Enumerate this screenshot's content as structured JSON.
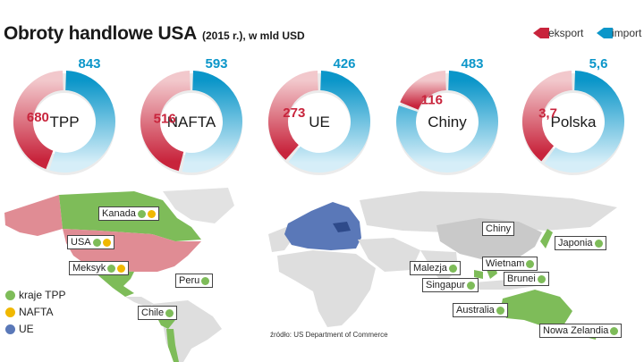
{
  "header": {
    "title": "Obroty handlowe USA",
    "subtitle": "(2015 r.), w mld USD"
  },
  "legend": {
    "export_label": "eksport",
    "import_label": "import",
    "export_color": "#c8243c",
    "import_color": "#0b96c9"
  },
  "chart_data": {
    "type": "donut",
    "title": "Obroty handlowe USA (2015 r.), w mld USD",
    "unit": "mld USD",
    "series_names": [
      "eksport",
      "import"
    ],
    "items": [
      {
        "name": "TPP",
        "export": 680,
        "import": 843,
        "export_label": "680",
        "import_label": "843"
      },
      {
        "name": "NAFTA",
        "export": 516,
        "import": 593,
        "export_label": "516",
        "import_label": "593"
      },
      {
        "name": "UE",
        "export": 273,
        "import": 426,
        "export_label": "273",
        "import_label": "426"
      },
      {
        "name": "Chiny",
        "export": 116,
        "import": 483,
        "export_label": "116",
        "import_label": "483"
      },
      {
        "name": "Polska",
        "export": 3.7,
        "import": 5.6,
        "export_label": "3,7",
        "import_label": "5,6"
      }
    ]
  },
  "map": {
    "labels": {
      "kanada": "Kanada",
      "usa": "USA",
      "meksyk": "Meksyk",
      "peru": "Peru",
      "chile": "Chile",
      "chiny": "Chiny",
      "japonia": "Japonia",
      "wietnam": "Wietnam",
      "malezja": "Malezja",
      "brunei": "Brunei",
      "singapur": "Singapur",
      "australia": "Australia",
      "nowa_zelandia": "Nowa Zelandia"
    },
    "legend": {
      "tpp": "kraje TPP",
      "nafta": "NAFTA",
      "ue": "UE"
    },
    "colors": {
      "tpp": "#7ebc59",
      "nafta": "#f0b800",
      "ue": "#5a78b8",
      "usa": "#e08c94",
      "land": "#dedede",
      "china": "#c9c9c9"
    }
  },
  "source": "źródło: US Department of Commerce"
}
